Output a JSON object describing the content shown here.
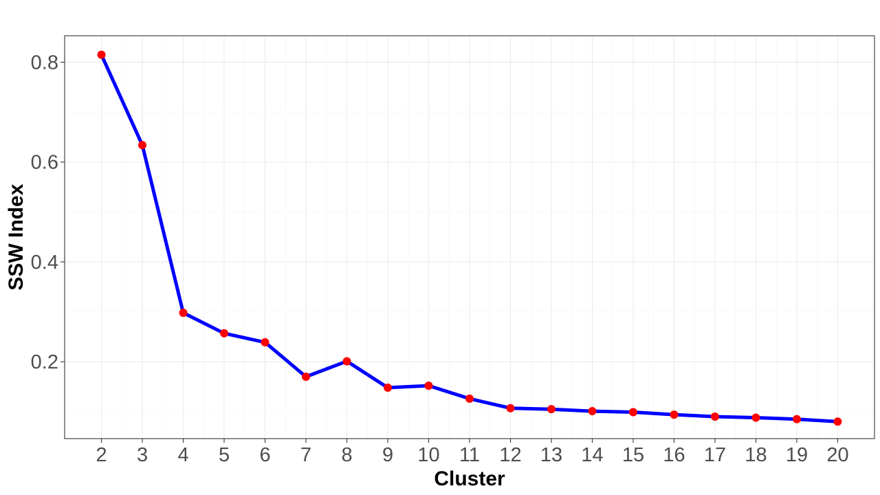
{
  "chart_data": {
    "type": "line",
    "title": "",
    "xlabel": "Cluster",
    "ylabel": "SSW Index",
    "x": [
      2,
      3,
      4,
      5,
      6,
      7,
      8,
      9,
      10,
      11,
      12,
      13,
      14,
      15,
      16,
      17,
      18,
      19,
      20
    ],
    "series": [
      {
        "values": [
          0.815,
          0.634,
          0.298,
          0.257,
          0.239,
          0.17,
          0.201,
          0.148,
          0.152,
          0.126,
          0.107,
          0.105,
          0.101,
          0.099,
          0.094,
          0.09,
          0.088,
          0.085,
          0.08
        ],
        "line_color": "#0000ff",
        "point_color": "#ff0000"
      }
    ],
    "xlim": [
      1.1,
      20.9
    ],
    "ylim": [
      0.046,
      0.853
    ],
    "x_ticks": [
      2,
      3,
      4,
      5,
      6,
      7,
      8,
      9,
      10,
      11,
      12,
      13,
      14,
      15,
      16,
      17,
      18,
      19,
      20
    ],
    "y_ticks": [
      0.2,
      0.4,
      0.6,
      0.8
    ],
    "y_tick_labels": [
      "0.2",
      "0.4",
      "0.6",
      "0.8"
    ],
    "grid": true,
    "legend": false
  }
}
